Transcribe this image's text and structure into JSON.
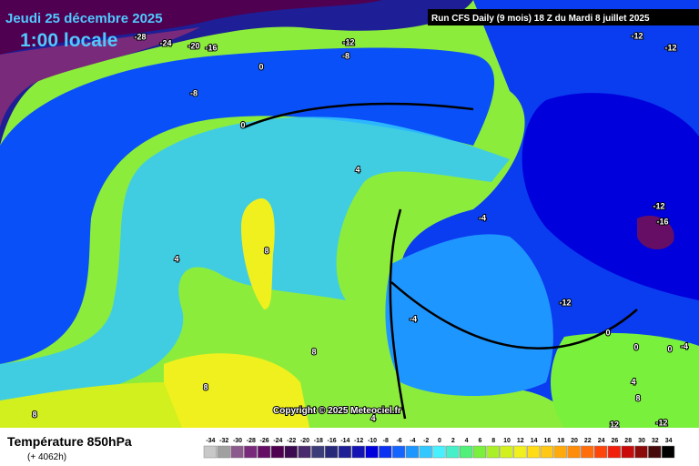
{
  "header": {
    "date": "Jeudi 25 décembre 2025",
    "time": "1:00 locale",
    "run": "Run CFS Daily (9 mois) 18 Z du Mardi 8 juillet 2025"
  },
  "copyright": "Copyright © 2025 Meteociel.fr",
  "footer": {
    "title": "Température 850hPa",
    "subtitle": "(+ 4062h)"
  },
  "contours": [
    -28,
    -24,
    -20,
    -16,
    -12,
    -8,
    0,
    -8,
    0,
    4,
    8,
    4,
    -4,
    -12,
    -16,
    -12,
    -4,
    0,
    0,
    0,
    -4,
    8,
    8,
    4,
    8,
    4,
    8,
    12,
    -12,
    -12,
    -12
  ],
  "legend": {
    "labels": [
      -34,
      -32,
      -30,
      -28,
      -26,
      -24,
      -22,
      -20,
      -18,
      -16,
      -14,
      -12,
      -10,
      -8,
      -6,
      -4,
      -2,
      0,
      2,
      4,
      6,
      8,
      10,
      12,
      14,
      16,
      18,
      20,
      22,
      24,
      26,
      28,
      30,
      32,
      34
    ],
    "colors": [
      "#c8c8c8",
      "#a0a0a0",
      "#8c5a8c",
      "#7a2a7a",
      "#660e66",
      "#500050",
      "#3c0a50",
      "#4a2a6e",
      "#3c3c78",
      "#28287a",
      "#1e1e96",
      "#1414b4",
      "#0000dc",
      "#0a32f0",
      "#1464ff",
      "#1e96ff",
      "#32c8ff",
      "#46f0ff",
      "#46f0c8",
      "#50f07a",
      "#78f03c",
      "#aaf028",
      "#d2f01e",
      "#f0f01e",
      "#ffdc14",
      "#ffc814",
      "#ffaa0a",
      "#ff8c0a",
      "#ff6e0a",
      "#ff460a",
      "#f01e0a",
      "#c80a0a",
      "#8c0a0a",
      "#460a0a",
      "#000000"
    ]
  }
}
